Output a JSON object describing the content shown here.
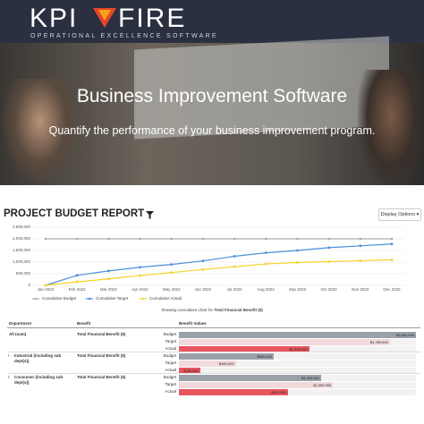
{
  "header": {
    "logo_left": "KPI",
    "logo_right": "FIRE",
    "tagline": "OPERATIONAL EXCELLENCE SOFTWARE"
  },
  "hero": {
    "title": "Business Improvement Software",
    "subtitle": "Quantify the performance of your business improvement program."
  },
  "report": {
    "title": "PROJECT BUDGET REPORT",
    "display_options": "Display Options"
  },
  "chart_data": {
    "type": "line",
    "categories": [
      "Jan 2022",
      "Feb 2022",
      "Mar 2022",
      "Apr 2022",
      "May 2022",
      "Jun 2022",
      "Jul 2022",
      "Aug 2022",
      "Sep 2022",
      "Oct 2022",
      "Nov 2022",
      "Dec 2022"
    ],
    "series": [
      {
        "name": "Cumulative Budget",
        "color": "#aab0b8",
        "values": [
          2000000,
          2000000,
          2000000,
          2000000,
          2000000,
          2000000,
          2000000,
          2000000,
          2000000,
          2000000,
          2000000,
          2000000
        ]
      },
      {
        "name": "Cumulative Target",
        "color": "#4a90d9",
        "values": [
          0,
          430000,
          620000,
          780000,
          900000,
          1050000,
          1250000,
          1400000,
          1500000,
          1620000,
          1700000,
          1780000
        ]
      },
      {
        "name": "Cumulative Actual",
        "color": "#f5d327",
        "values": [
          0,
          150000,
          280000,
          420000,
          550000,
          680000,
          800000,
          920000,
          980000,
          1020000,
          1060000,
          1100000
        ]
      }
    ],
    "ylim": [
      0,
      2500000
    ],
    "yticks": [
      0,
      {
        "value": 500000,
        "label": "500,000"
      },
      {
        "value": 1000000,
        "label": "1,000,000"
      },
      {
        "value": 1500000,
        "label": "1,500,000"
      },
      {
        "value": 2000000,
        "label": "2,000,000"
      },
      {
        "value": 2500000,
        "label": "2,500,000"
      }
    ],
    "grid": true
  },
  "caption": {
    "text": "Showing cumulative chart for",
    "emphasis": "Total Financial Benefit ($)"
  },
  "table": {
    "headers": [
      "Department",
      "Benefit",
      "Benefit Values"
    ],
    "rows": [
      {
        "department": "All (sum)",
        "benefit": "Total Financial Benefit ($)",
        "bars": [
          {
            "label": "Budget",
            "value": 2000000,
            "value_label": "$2,000,000"
          },
          {
            "label": "Target",
            "value": 1780000,
            "value_label": "$1,780,000"
          },
          {
            "label": "Actual",
            "value": 1100000,
            "value_label": "$1,100,000"
          }
        ]
      },
      {
        "department": "Industrial (including sub dept(s))",
        "benefit": "Total Financial Benefit ($)",
        "bars": [
          {
            "label": "Budget",
            "value": 800000,
            "value_label": "$800,000"
          },
          {
            "label": "Target",
            "value": 480000,
            "value_label": "$480,000"
          },
          {
            "label": "Actual",
            "value": 180000,
            "value_label": "$180,000"
          }
        ]
      },
      {
        "department": "Consumer (including sub dept(s))",
        "benefit": "Total Financial Benefit ($)",
        "bars": [
          {
            "label": "Budget",
            "value": 1200000,
            "value_label": "$1,200,000"
          },
          {
            "label": "Target",
            "value": 1300000,
            "value_label": "$1,300,000"
          },
          {
            "label": "Actual",
            "value": 920000,
            "value_label": "$920,000"
          }
        ]
      }
    ]
  }
}
